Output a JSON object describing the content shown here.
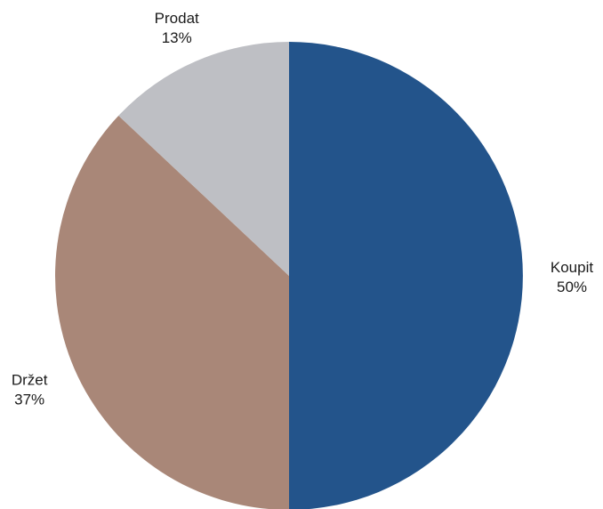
{
  "chart_data": {
    "type": "pie",
    "slices": [
      {
        "label": "Koupit",
        "value": 50,
        "value_label": "50%",
        "color": "#23548b"
      },
      {
        "label": "Držet",
        "value": 37,
        "value_label": "37%",
        "color": "#a98778"
      },
      {
        "label": "Prodat",
        "value": 13,
        "value_label": "13%",
        "color": "#bebfc4"
      }
    ],
    "start": "12 o'clock",
    "direction": "clockwise",
    "legend": "none"
  }
}
